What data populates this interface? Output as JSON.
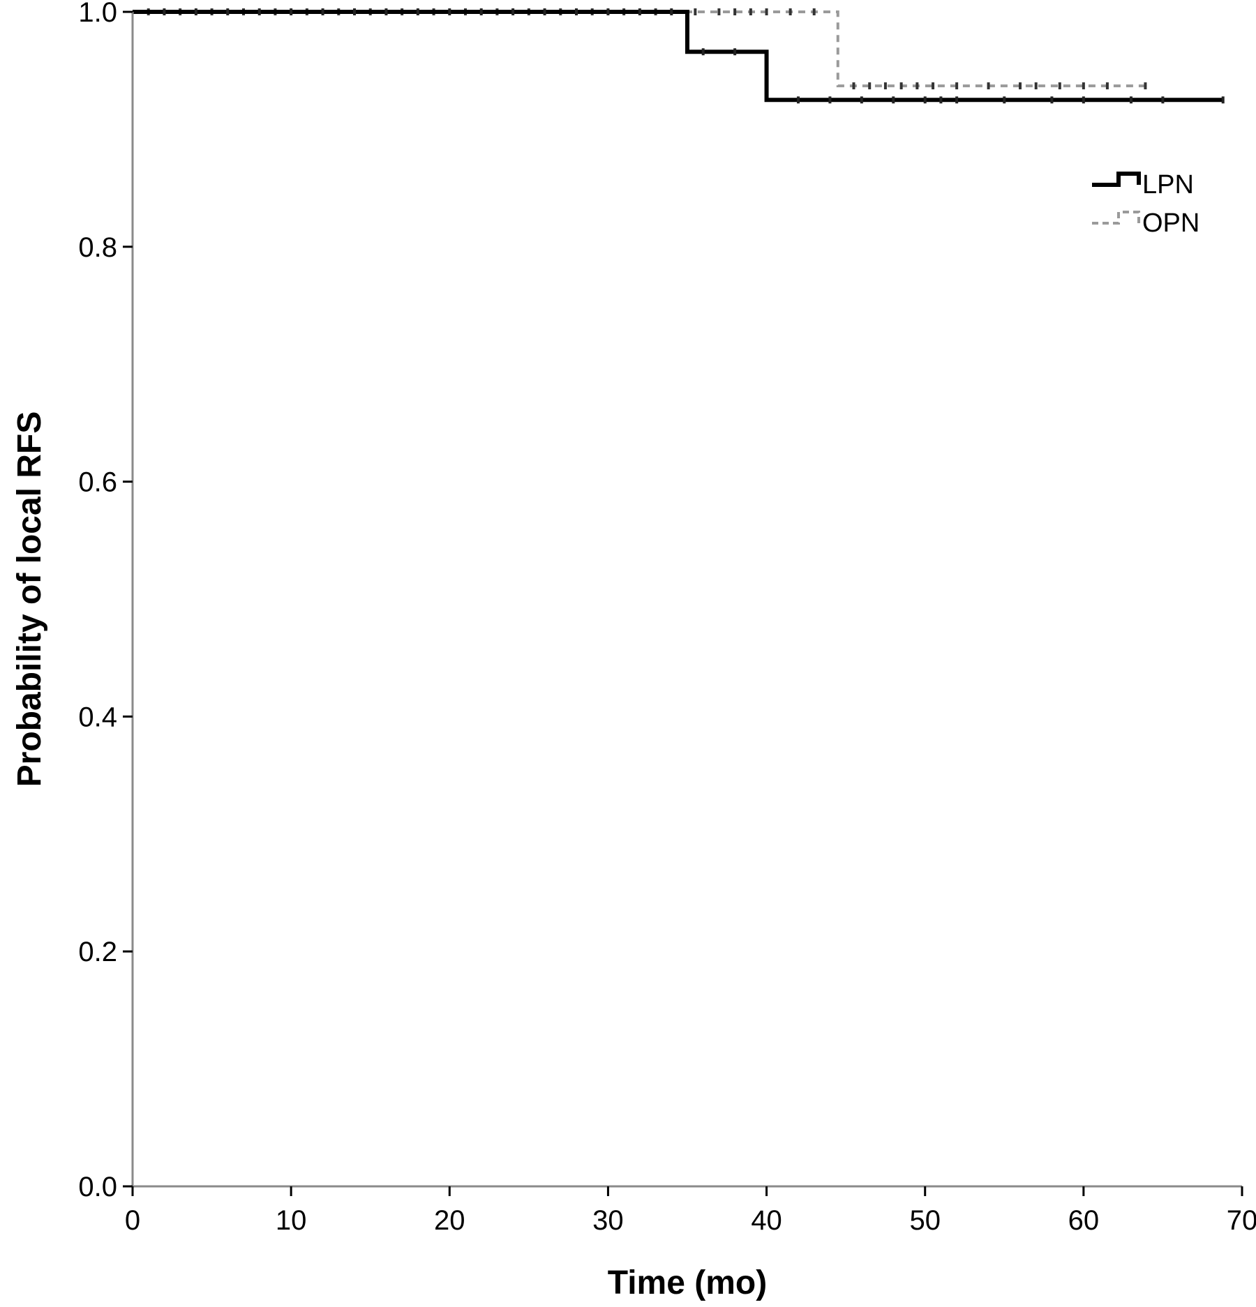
{
  "chart_data": {
    "type": "line",
    "title": "",
    "xlabel": "Time (mo)",
    "ylabel": "Probability of local RFS",
    "xlim": [
      0,
      70
    ],
    "ylim": [
      0.0,
      1.0
    ],
    "x_ticks": [
      0,
      10,
      20,
      30,
      40,
      50,
      60,
      70
    ],
    "y_ticks": [
      0.0,
      0.2,
      0.4,
      0.6,
      0.8,
      1.0
    ],
    "x_tick_labels": [
      "0",
      "10",
      "20",
      "30",
      "40",
      "50",
      "60",
      "70"
    ],
    "y_tick_labels": [
      "0.0",
      "0.2",
      "0.4",
      "0.6",
      "0.8",
      "1.0"
    ],
    "grid": false,
    "legend_position": "top-right",
    "series": [
      {
        "name": "LPN",
        "style": "solid",
        "color": "#000000",
        "steps": [
          [
            0,
            1.0
          ],
          [
            35,
            0.966
          ],
          [
            40,
            0.925
          ],
          [
            68.8,
            0.925
          ]
        ],
        "censored": [
          2,
          4,
          6,
          8,
          10,
          12,
          14,
          16,
          18,
          20,
          22,
          24,
          26,
          28,
          30,
          32,
          34,
          36,
          38,
          42,
          44,
          46,
          48,
          50,
          51,
          52,
          55,
          58,
          60,
          63,
          65,
          68.8
        ]
      },
      {
        "name": "OPN",
        "style": "dashed",
        "color": "#9a9a9a",
        "steps": [
          [
            0,
            1.0
          ],
          [
            44.5,
            0.937
          ],
          [
            63.9,
            0.937
          ]
        ],
        "censored": [
          1,
          3,
          5,
          7,
          9,
          11,
          13,
          15,
          17,
          19,
          21,
          23,
          25,
          27,
          29,
          31,
          33,
          35.5,
          37,
          38,
          39,
          40,
          41.5,
          43,
          45.5,
          46.5,
          47.5,
          48.5,
          49.5,
          50.5,
          52,
          54,
          56,
          57,
          58.5,
          60,
          61.5,
          63.9
        ]
      }
    ]
  }
}
